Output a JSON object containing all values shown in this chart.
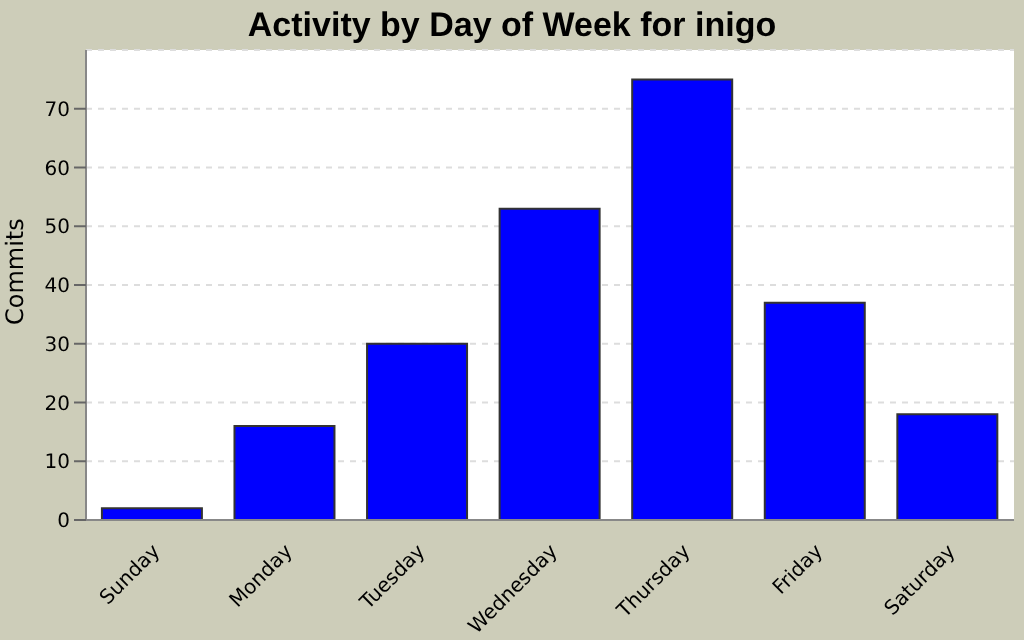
{
  "chart_data": {
    "type": "bar",
    "title": "Activity by Day of Week for inigo",
    "ylabel": "Commits",
    "categories": [
      "Sunday",
      "Monday",
      "Tuesday",
      "Wednesday",
      "Thursday",
      "Friday",
      "Saturday"
    ],
    "values": [
      2,
      16,
      30,
      53,
      75,
      37,
      18
    ],
    "color": "#0000ff",
    "ylim": [
      0,
      80
    ],
    "yticks": [
      0,
      10,
      20,
      30,
      40,
      50,
      60,
      70
    ],
    "grid": "y",
    "legend": false
  }
}
